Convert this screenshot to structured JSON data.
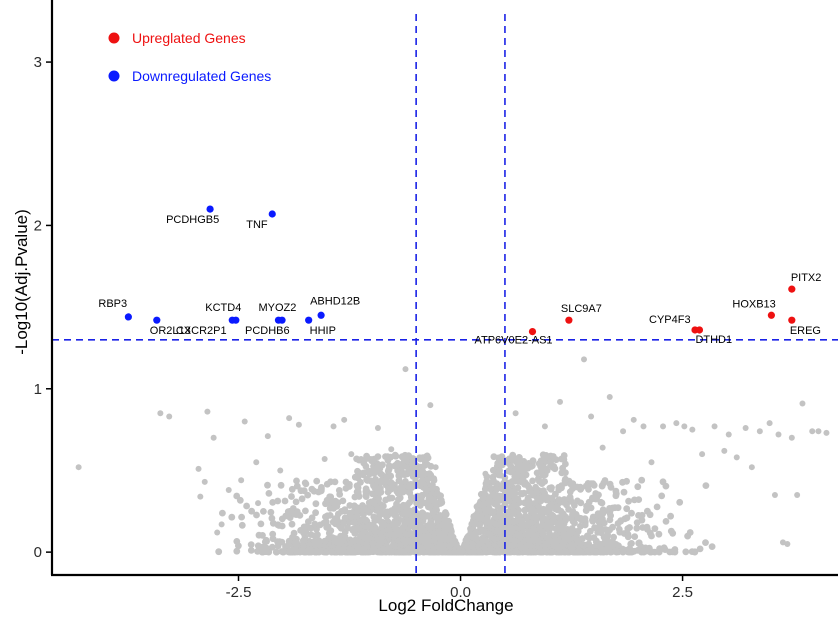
{
  "chart_data": {
    "type": "scatter",
    "xlabel": "Log2 FoldChange",
    "ylabel": "-Log10(Adj.Pvalue)",
    "xlim": [
      -4.6,
      4.25
    ],
    "ylim": [
      -0.14,
      3.38
    ],
    "x_ticks": [
      -2.5,
      0.0,
      2.5
    ],
    "x_tick_labels": [
      "-2.5",
      "0.0",
      "2.5"
    ],
    "y_ticks": [
      0,
      1,
      2,
      3
    ],
    "y_tick_labels": [
      "0",
      "1",
      "2",
      "3"
    ],
    "grid": false,
    "thresholds": {
      "fold_change": [
        -0.5,
        0.5
      ],
      "neg_log10_padj": 1.3
    },
    "colors": {
      "up": "#ee1111",
      "down": "#0a1aff",
      "ns": "#c3c3c3",
      "threshold": "#1a22e6",
      "axis": "#000000"
    },
    "legend": {
      "position": "top-left",
      "items": [
        {
          "label": "Upreglated Genes",
          "color": "#ee1111"
        },
        {
          "label": "Downregulated Genes",
          "color": "#0a1aff"
        }
      ]
    },
    "upregulated": [
      {
        "gene": "ATP6V0E2-AS1",
        "x": 0.81,
        "y": 1.35
      },
      {
        "gene": "SLC9A7",
        "x": 1.22,
        "y": 1.42
      },
      {
        "gene": "CYP4F3",
        "x": 2.64,
        "y": 1.36
      },
      {
        "gene": "DTHD1",
        "x": 2.69,
        "y": 1.36
      },
      {
        "gene": "HOXB13",
        "x": 3.5,
        "y": 1.45
      },
      {
        "gene": "PITX2",
        "x": 3.73,
        "y": 1.61
      },
      {
        "gene": "EREG",
        "x": 3.73,
        "y": 1.42
      }
    ],
    "downregulated": [
      {
        "gene": "RBP3",
        "x": -3.74,
        "y": 1.44
      },
      {
        "gene": "OR2L13",
        "x": -3.42,
        "y": 1.42
      },
      {
        "gene": "PCDHGB5",
        "x": -2.82,
        "y": 2.1
      },
      {
        "gene": "KCTD4",
        "x": -2.57,
        "y": 1.42
      },
      {
        "gene": "CXCR2P1",
        "x": -2.53,
        "y": 1.42
      },
      {
        "gene": "TNF",
        "x": -2.12,
        "y": 2.07
      },
      {
        "gene": "MYOZ2",
        "x": -2.05,
        "y": 1.42
      },
      {
        "gene": "PCDHB6",
        "x": -2.01,
        "y": 1.42
      },
      {
        "gene": "HHIP",
        "x": -1.71,
        "y": 1.42
      },
      {
        "gene": "ABHD12B",
        "x": -1.57,
        "y": 1.45
      }
    ],
    "not_significant_outliers": [
      {
        "x": -4.3,
        "y": 0.52
      },
      {
        "x": -3.38,
        "y": 0.85
      },
      {
        "x": -3.28,
        "y": 0.83
      },
      {
        "x": -2.95,
        "y": 0.51
      },
      {
        "x": -2.93,
        "y": 0.34
      },
      {
        "x": -2.88,
        "y": 0.43
      },
      {
        "x": -2.85,
        "y": 0.86
      },
      {
        "x": -2.78,
        "y": 0.7
      },
      {
        "x": -2.74,
        "y": 0.12
      },
      {
        "x": -2.69,
        "y": 0.17
      },
      {
        "x": -2.61,
        "y": 0.38
      },
      {
        "x": -2.47,
        "y": 0.44
      },
      {
        "x": -2.43,
        "y": 0.8
      },
      {
        "x": -2.3,
        "y": 0.55
      },
      {
        "x": -2.28,
        "y": 0.3
      },
      {
        "x": -2.17,
        "y": 0.71
      },
      {
        "x": -2.03,
        "y": 0.5
      },
      {
        "x": -1.93,
        "y": 0.82
      },
      {
        "x": -1.82,
        "y": 0.78
      },
      {
        "x": -1.53,
        "y": 0.57
      },
      {
        "x": -1.43,
        "y": 0.77
      },
      {
        "x": -1.31,
        "y": 0.81
      },
      {
        "x": -1.23,
        "y": 0.6
      },
      {
        "x": -1.12,
        "y": 0.57
      },
      {
        "x": -1.01,
        "y": 0.57
      },
      {
        "x": -0.93,
        "y": 0.76
      },
      {
        "x": -0.78,
        "y": 0.63
      },
      {
        "x": -0.62,
        "y": 1.12
      },
      {
        "x": -0.34,
        "y": 0.9
      },
      {
        "x": 0.62,
        "y": 0.85
      },
      {
        "x": 0.95,
        "y": 0.77
      },
      {
        "x": 1.12,
        "y": 0.92
      },
      {
        "x": 1.39,
        "y": 1.18
      },
      {
        "x": 1.47,
        "y": 0.83
      },
      {
        "x": 1.6,
        "y": 0.64
      },
      {
        "x": 1.68,
        "y": 0.95
      },
      {
        "x": 1.83,
        "y": 0.74
      },
      {
        "x": 1.95,
        "y": 0.81
      },
      {
        "x": 2.06,
        "y": 0.77
      },
      {
        "x": 2.15,
        "y": 0.55
      },
      {
        "x": 2.28,
        "y": 0.77
      },
      {
        "x": 2.43,
        "y": 0.79
      },
      {
        "x": 2.52,
        "y": 0.77
      },
      {
        "x": 2.61,
        "y": 0.75
      },
      {
        "x": 2.72,
        "y": 0.6
      },
      {
        "x": 2.86,
        "y": 0.77
      },
      {
        "x": 2.97,
        "y": 0.62
      },
      {
        "x": 3.02,
        "y": 0.72
      },
      {
        "x": 3.11,
        "y": 0.58
      },
      {
        "x": 3.21,
        "y": 0.76
      },
      {
        "x": 3.28,
        "y": 0.52
      },
      {
        "x": 3.37,
        "y": 0.74
      },
      {
        "x": 3.48,
        "y": 0.79
      },
      {
        "x": 3.54,
        "y": 0.35
      },
      {
        "x": 3.58,
        "y": 0.72
      },
      {
        "x": 3.63,
        "y": 0.06
      },
      {
        "x": 3.73,
        "y": 0.7
      },
      {
        "x": 3.79,
        "y": 0.35
      },
      {
        "x": 3.85,
        "y": 0.91
      },
      {
        "x": 3.96,
        "y": 0.74
      },
      {
        "x": 4.03,
        "y": 0.74
      },
      {
        "x": 4.12,
        "y": 0.73
      },
      {
        "x": 3.68,
        "y": 0.05
      },
      {
        "x": 0.28,
        "y": 0.48
      },
      {
        "x": -0.28,
        "y": 0.52
      }
    ],
    "not_significant_cloud": {
      "approx_count": 3000,
      "y_max_near_center": 0.5,
      "spread_x": [
        -2.9,
        3.2
      ]
    }
  }
}
